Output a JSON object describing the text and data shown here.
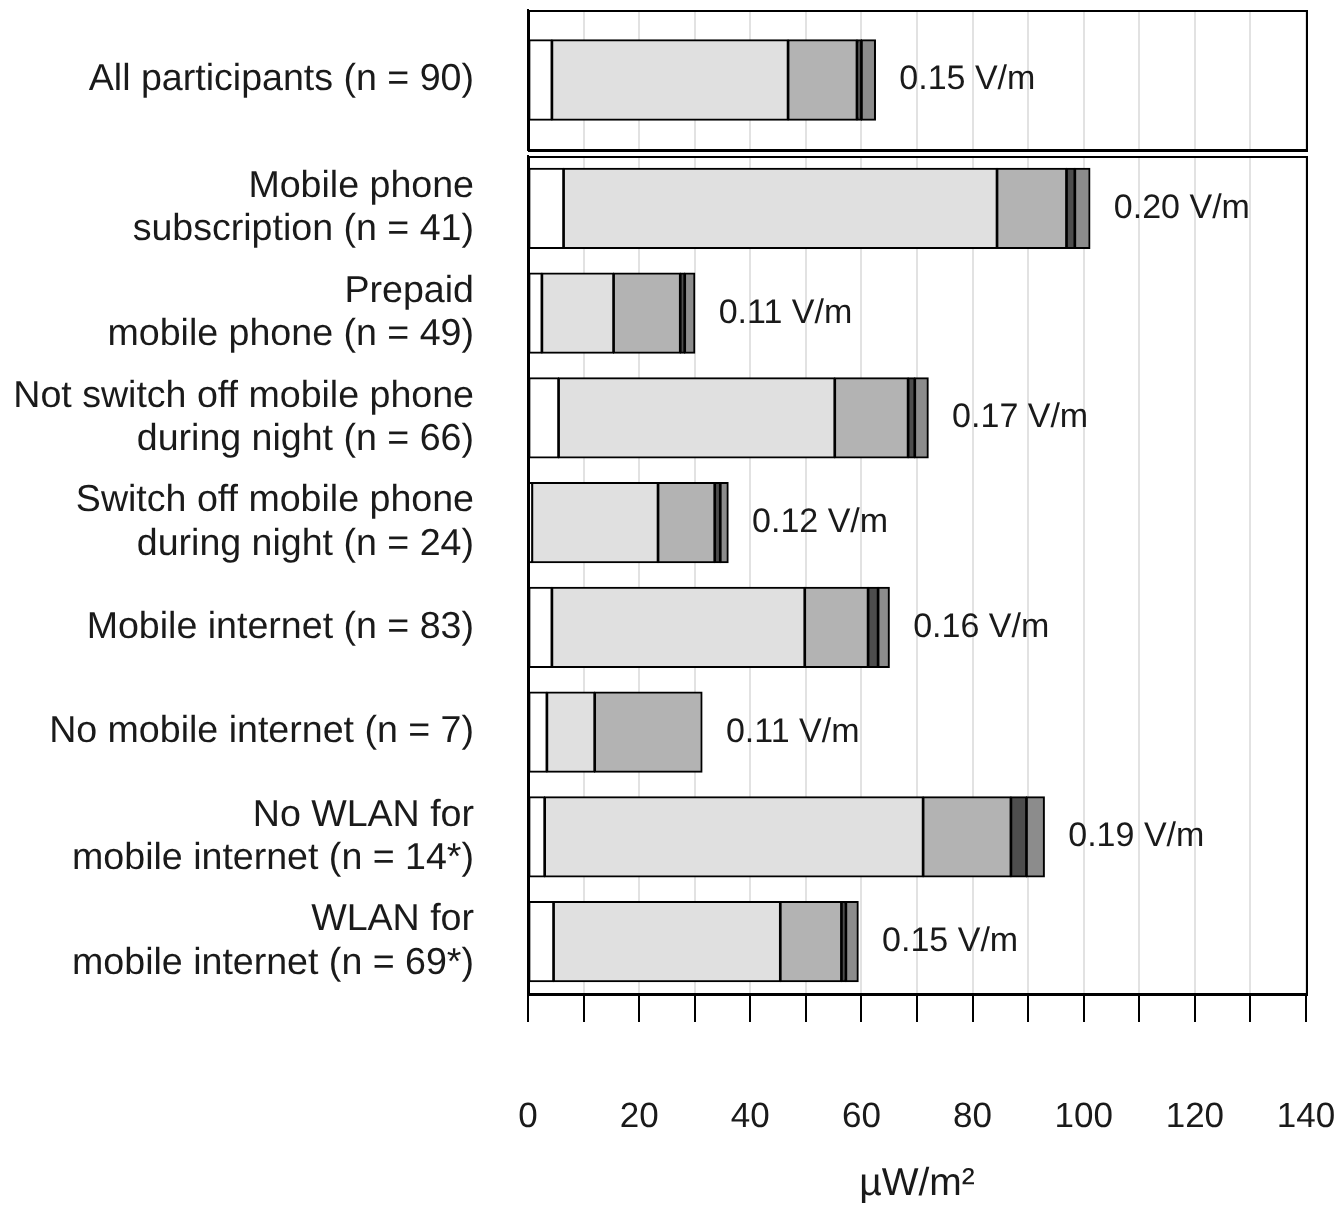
{
  "chart_data": [
    {
      "type": "bar",
      "orientation": "horizontal",
      "stacked": true,
      "categories": [
        "All participants (n = 90)"
      ],
      "series": [
        {
          "color": "#ffffff",
          "values": [
            4.3
          ]
        },
        {
          "color": "#e0e0e0",
          "values": [
            42.5
          ]
        },
        {
          "color": "#b3b3b3",
          "values": [
            12.4
          ]
        },
        {
          "color": "#4d4d4d",
          "values": [
            0.8
          ]
        },
        {
          "color": "#8c8c8c",
          "values": [
            2.5
          ]
        }
      ],
      "xlim": [
        0,
        140
      ],
      "xticks": [
        0,
        {
          "value": 10,
          "label": null
        },
        20,
        {
          "value": 30,
          "label": null
        },
        40,
        {
          "value": 50,
          "label": null
        },
        60,
        {
          "value": 70,
          "label": null
        },
        80,
        {
          "value": 90,
          "label": null
        },
        100,
        {
          "value": 110,
          "label": null
        },
        120,
        {
          "value": 130,
          "label": null
        },
        140
      ],
      "grid": "x",
      "tick_labels": "y",
      "annotations": [
        {
          "text": "0.15 V/m",
          "x": 62.5,
          "y": "All participants (n = 90)"
        }
      ]
    },
    {
      "type": "bar",
      "orientation": "horizontal",
      "stacked": true,
      "categories": [
        "Mobile phone\nsubscription (n = 41)",
        "Prepaid\nmobile phone (n = 49)",
        "Not switch off mobile phone\nduring night (n = 66)",
        "Switch off mobile phone\nduring night (n = 24)",
        "Mobile internet (n = 83)",
        "No mobile internet (n = 7)",
        "No WLAN for\nmobile internet (n = 14*)",
        "WLAN for\nmobile internet (n = 69*)"
      ],
      "series": [
        {
          "color": "#ffffff",
          "values": [
            6.4,
            2.5,
            5.5,
            0.7,
            4.3,
            3.4,
            3.0,
            4.6
          ]
        },
        {
          "color": "#e0e0e0",
          "values": [
            78,
            12.9,
            49.7,
            22.7,
            45.5,
            8.6,
            68.1,
            40.8
          ]
        },
        {
          "color": "#b3b3b3",
          "values": [
            12.5,
            12.0,
            13.2,
            10.2,
            11.4,
            19.3,
            15.8,
            11.0
          ]
        },
        {
          "color": "#4d4d4d",
          "values": [
            1.5,
            0.8,
            1.2,
            1.0,
            1.8,
            0,
            2.8,
            0.8
          ]
        },
        {
          "color": "#8c8c8c",
          "values": [
            2.7,
            1.8,
            2.4,
            1.4,
            2.0,
            0,
            3.2,
            2.2
          ]
        }
      ],
      "xlim": [
        0,
        140
      ],
      "xticks": [
        0,
        {
          "value": 10,
          "label": null
        },
        20,
        {
          "value": 30,
          "label": null
        },
        40,
        {
          "value": 50,
          "label": null
        },
        60,
        {
          "value": 70,
          "label": null
        },
        80,
        {
          "value": 90,
          "label": null
        },
        100,
        {
          "value": 110,
          "label": null
        },
        120,
        {
          "value": 130,
          "label": null
        },
        140
      ],
      "xlabel": "µW/m²",
      "grid": "x",
      "annotations": [
        {
          "text": "0.20 V/m",
          "x": 101.1,
          "y": "Mobile phone\nsubscription (n = 41)"
        },
        {
          "text": "0.11 V/m",
          "x": 30.0,
          "y": "Prepaid\nmobile phone (n = 49)"
        },
        {
          "text": "0.17 V/m",
          "x": 72.0,
          "y": "Not switch off mobile phone\nduring night (n = 66)"
        },
        {
          "text": "0.12 V/m",
          "x": 36.0,
          "y": "Switch off mobile phone\nduring night (n = 24)"
        },
        {
          "text": "0.16 V/m",
          "x": 65.0,
          "y": "Mobile internet (n = 83)"
        },
        {
          "text": "0.11 V/m",
          "x": 31.3,
          "y": "No mobile internet (n = 7)"
        },
        {
          "text": "0.19 V/m",
          "x": 92.9,
          "y": "No WLAN for\nmobile internet (n = 14*)"
        },
        {
          "text": "0.15 V/m",
          "x": 59.4,
          "y": "WLAN for\nmobile internet (n = 69*)"
        }
      ]
    }
  ]
}
